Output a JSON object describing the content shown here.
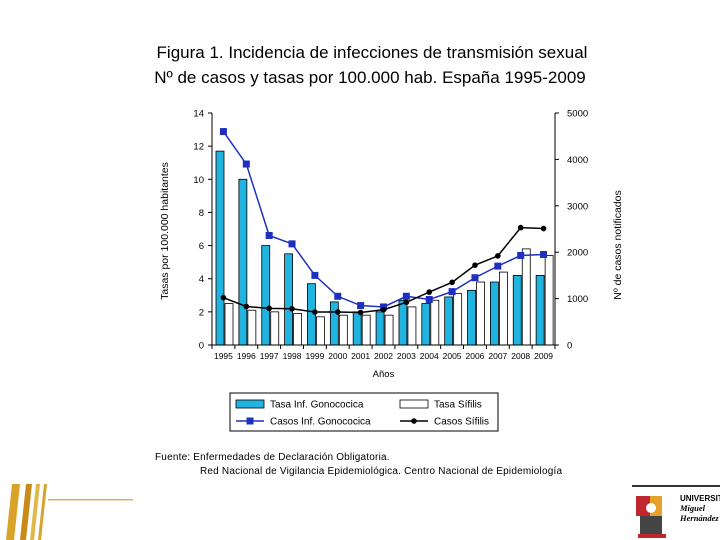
{
  "title_line1": "Figura 1. Incidencia de infecciones de transmisión sexual",
  "title_line2": "Nº de casos y tasas por 100.000 hab.  España 1995-2009",
  "source_line1": "Fuente: Enfermedades de Declaración Obligatoria.",
  "source_line2": "Red Nacional de Vigilancia Epidemiológica. Centro Nacional de Epidemiología",
  "logo": {
    "line1": "UNIVERSITAS",
    "line2": "Miguel",
    "line3": "Hernández"
  },
  "chart_data": {
    "type": "bar",
    "categories": [
      "1995",
      "1996",
      "1997",
      "1998",
      "1999",
      "2000",
      "2001",
      "2002",
      "2003",
      "2004",
      "2005",
      "2006",
      "2007",
      "2008",
      "2009"
    ],
    "category_labels": [
      "1995",
      "1996",
      "1997",
      "1998",
      "1999",
      "2000",
      "2001",
      "2002",
      "2003",
      "2004",
      "2005",
      "2006",
      "2007",
      "2008",
      "2009"
    ],
    "xlabel": "Años",
    "ylabel_left": "Tasas por 100.000 habitantes",
    "ylabel_right": "Nº de casos notificados",
    "ylim_left": [
      0,
      14
    ],
    "ylim_right": [
      0,
      5000
    ],
    "yticks_left": [
      "0",
      "2",
      "4",
      "6",
      "8",
      "10",
      "12",
      "14"
    ],
    "yticks_right": [
      "0",
      "1000",
      "2000",
      "3000",
      "4000",
      "5000"
    ],
    "series": [
      {
        "name": "Tasa Inf. Gonococica",
        "axis": "left",
        "kind": "bar",
        "color": "#22b4e0",
        "values": [
          11.7,
          10.0,
          6.0,
          5.5,
          3.7,
          2.6,
          2.0,
          2.0,
          2.7,
          2.5,
          2.9,
          3.3,
          3.8,
          4.2,
          4.2
        ]
      },
      {
        "name": "Tasa Sífilis",
        "axis": "left",
        "kind": "bar",
        "color": "#ffffff",
        "values": [
          2.5,
          2.1,
          2.0,
          1.9,
          1.7,
          1.8,
          1.8,
          1.8,
          2.3,
          2.7,
          3.1,
          3.8,
          4.4,
          5.8,
          5.4
        ]
      },
      {
        "name": "Casos Inf. Gonococica",
        "axis": "right",
        "kind": "line",
        "marker": "square",
        "color": "#1f2fbf",
        "values": [
          4600,
          3900,
          2360,
          2180,
          1500,
          1050,
          850,
          820,
          1050,
          980,
          1150,
          1450,
          1700,
          1930,
          1950
        ]
      },
      {
        "name": "Casos Sífilis",
        "axis": "right",
        "kind": "line",
        "marker": "circle",
        "color": "#000000",
        "values": [
          1020,
          830,
          790,
          780,
          710,
          710,
          700,
          760,
          920,
          1140,
          1350,
          1720,
          1920,
          2530,
          2510
        ]
      }
    ],
    "legend_position": "bottom"
  }
}
